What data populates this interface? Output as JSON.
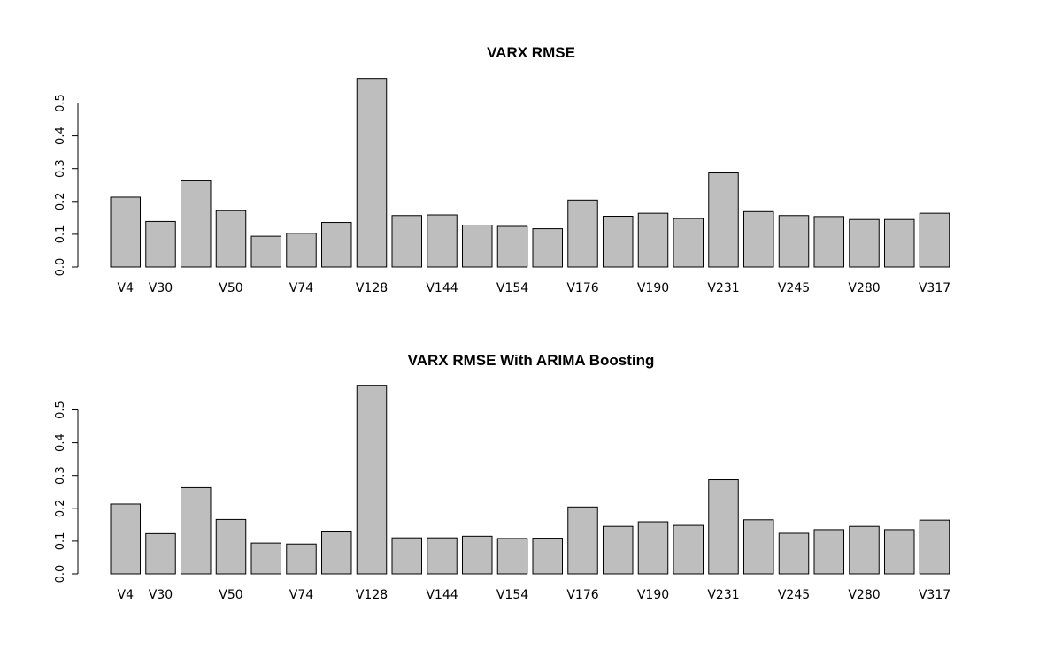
{
  "chart_data": [
    {
      "type": "bar",
      "title": "VARX RMSE",
      "xlabel": "",
      "ylabel": "",
      "ylim": [
        0,
        0.58
      ],
      "yticks": [
        "0.0",
        "0.1",
        "0.2",
        "0.3",
        "0.4",
        "0.5"
      ],
      "categories": [
        "V4",
        "V30",
        "",
        "V50",
        "",
        "V74",
        "",
        "V128",
        "",
        "V144",
        "",
        "V154",
        "",
        "V176",
        "",
        "V190",
        "",
        "V231",
        "",
        "V245",
        "",
        "V280",
        "",
        "V317"
      ],
      "values": [
        0.213,
        0.139,
        0.263,
        0.172,
        0.094,
        0.103,
        0.136,
        0.575,
        0.157,
        0.159,
        0.128,
        0.124,
        0.117,
        0.204,
        0.155,
        0.164,
        0.148,
        0.287,
        0.169,
        0.157,
        0.154,
        0.145,
        0.145,
        0.164
      ],
      "bar_color": "#bebebe",
      "grid": false
    },
    {
      "type": "bar",
      "title": "VARX RMSE With ARIMA Boosting",
      "xlabel": "",
      "ylabel": "",
      "ylim": [
        0,
        0.58
      ],
      "yticks": [
        "0.0",
        "0.1",
        "0.2",
        "0.3",
        "0.4",
        "0.5"
      ],
      "categories": [
        "V4",
        "V30",
        "",
        "V50",
        "",
        "V74",
        "",
        "V128",
        "",
        "V144",
        "",
        "V154",
        "",
        "V176",
        "",
        "V190",
        "",
        "V231",
        "",
        "V245",
        "",
        "V280",
        "",
        "V317"
      ],
      "values": [
        0.213,
        0.123,
        0.263,
        0.166,
        0.094,
        0.091,
        0.128,
        0.575,
        0.11,
        0.11,
        0.115,
        0.108,
        0.109,
        0.204,
        0.145,
        0.159,
        0.148,
        0.287,
        0.165,
        0.124,
        0.135,
        0.145,
        0.135,
        0.164
      ],
      "bar_color": "#bebebe",
      "grid": false
    }
  ]
}
